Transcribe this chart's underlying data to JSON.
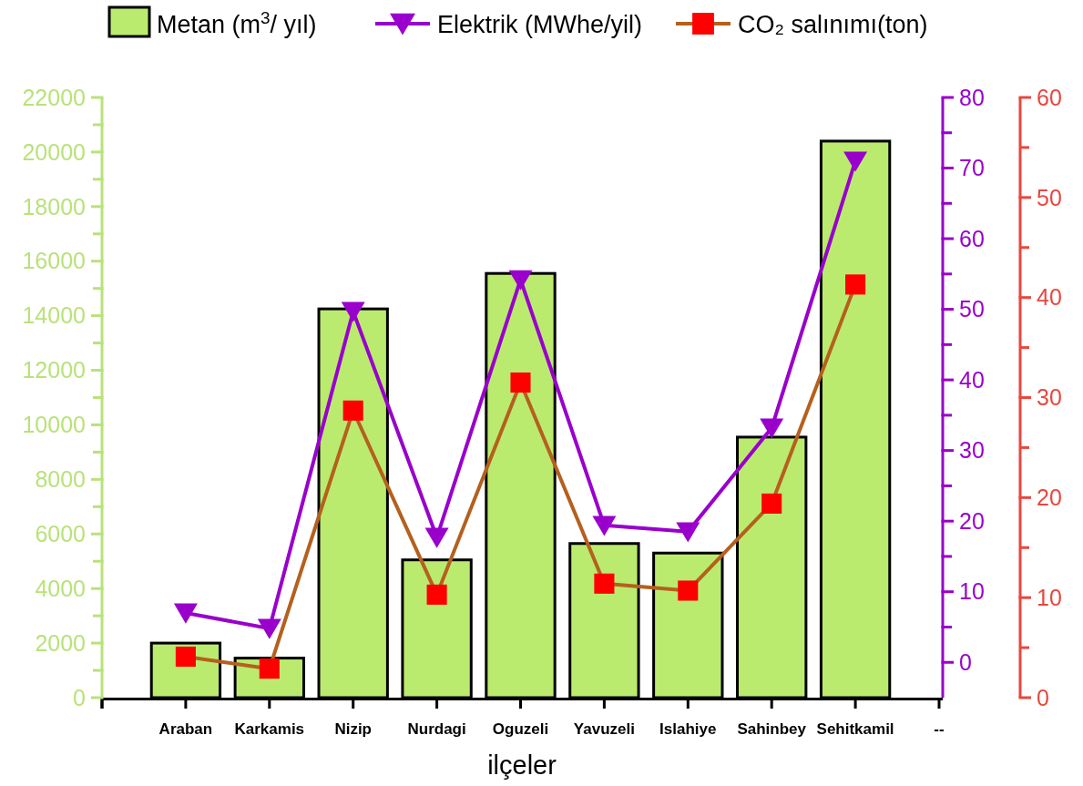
{
  "chart_data": {
    "type": "bar",
    "xlabel": "ilçeler",
    "legend": "top",
    "categories": [
      null,
      "Araban",
      "Karkamis",
      "Nizip",
      "Nurdagi",
      "Oguzeli",
      "Yavuzeli",
      "Islahiye",
      "Sahinbey",
      "Sehitkamil",
      "--"
    ],
    "series": [
      {
        "name": "Metan (m$^{3}$/ yıl)",
        "color": "#bbeb6e",
        "values": [
          null,
          2000,
          1450,
          14250,
          5050,
          15550,
          5650,
          5300,
          9550,
          20400,
          null
        ]
      },
      {
        "name": "Elektrik (MWhe/yil)",
        "type": "line",
        "axis": "y2",
        "color": "#9900cc",
        "marker": "triangle",
        "values": [
          null,
          7.0,
          4.8,
          49.7,
          17.7,
          54.2,
          19.4,
          18.5,
          33.2,
          71.0,
          null
        ]
      },
      {
        "name": "CO₂ salınımı(ton)",
        "type": "line",
        "axis": "y3",
        "color": "#b5601e",
        "colors": [
          "#ff0000",
          "#ff0000",
          "#ff0000",
          "#ff0000",
          "#ff0000",
          "#ff0000",
          "#ff0000",
          "#ff0000",
          "#ff0000",
          "#ff0000",
          "#ff0000"
        ],
        "marker": "square",
        "values": [
          null,
          4.1,
          2.9,
          28.7,
          10.3,
          31.5,
          11.4,
          10.7,
          19.4,
          41.3,
          null
        ]
      }
    ],
    "ylim": [
      0,
      22000
    ],
    "yticks": [
      0,
      {
        "value": 1000,
        "label": null
      },
      2000,
      {
        "value": 3000,
        "label": null
      },
      4000,
      {
        "value": 5000,
        "label": null
      },
      6000,
      {
        "value": 7000,
        "label": null
      },
      8000,
      {
        "value": 9000,
        "label": null
      },
      10000,
      {
        "value": 11000,
        "label": null
      },
      12000,
      {
        "value": 13000,
        "label": null
      },
      14000,
      {
        "value": 15000,
        "label": null
      },
      16000,
      {
        "value": 17000,
        "label": null
      },
      18000,
      {
        "value": 19000,
        "label": null
      },
      20000,
      {
        "value": 21000,
        "label": null
      },
      22000
    ],
    "y2lim": [
      -5,
      80
    ],
    "y2ticks": [
      0,
      {
        "value": 5,
        "label": null
      },
      10,
      {
        "value": 15,
        "label": null
      },
      20,
      {
        "value": 25,
        "label": null
      },
      30,
      {
        "value": 35,
        "label": null
      },
      40,
      {
        "value": 45,
        "label": null
      },
      50,
      {
        "value": 55,
        "label": null
      },
      60,
      {
        "value": 65,
        "label": null
      },
      70,
      {
        "value": 75,
        "label": null
      },
      80
    ],
    "y3lim": [
      0,
      60
    ],
    "y3ticks": [
      0,
      10,
      20,
      30,
      40,
      50,
      60
    ]
  }
}
